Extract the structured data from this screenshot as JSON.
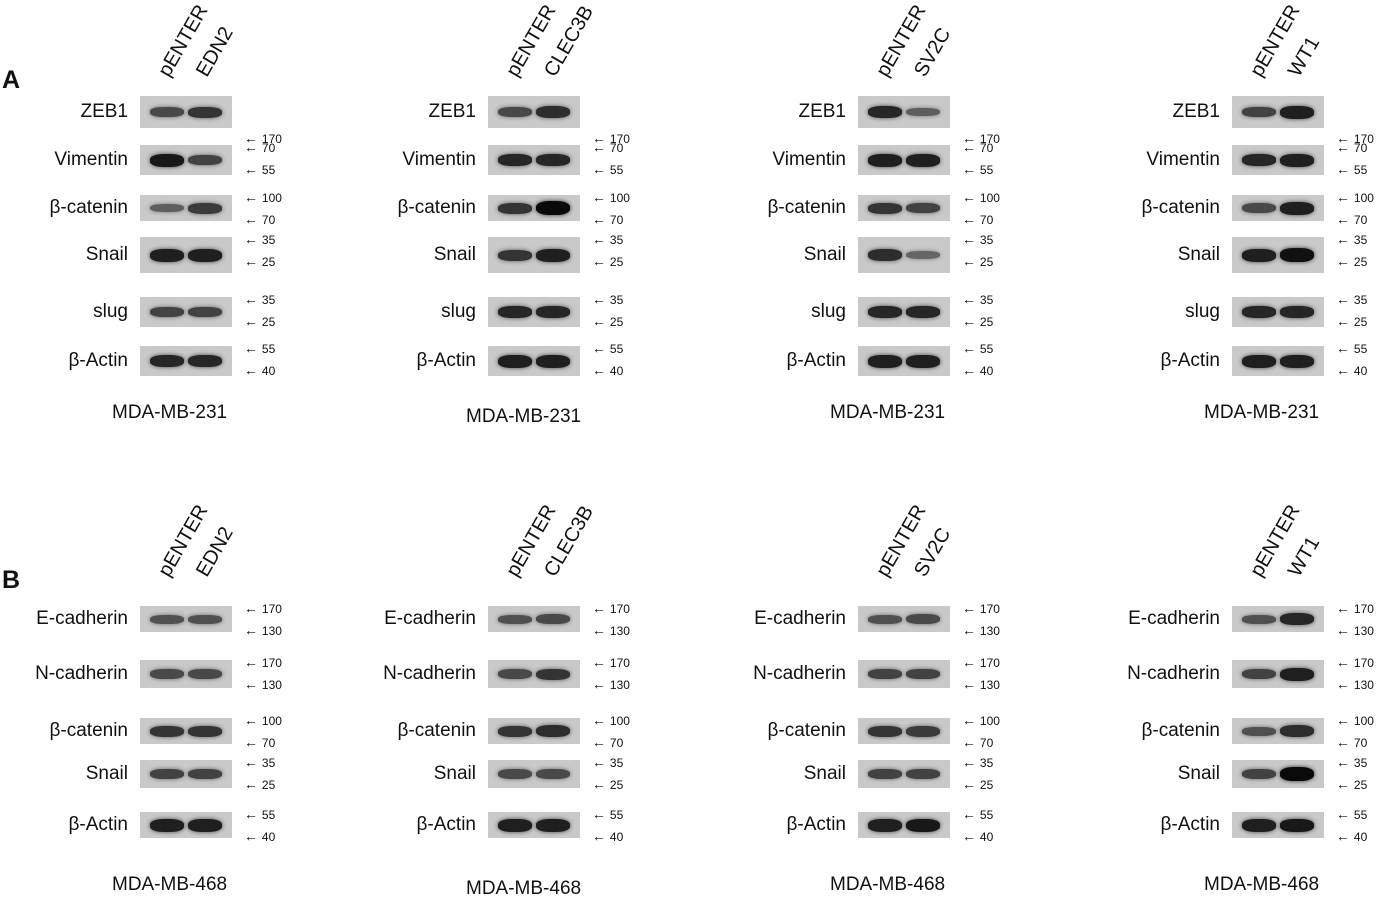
{
  "panels": [
    {
      "letter": "A",
      "cell_line": "MDA-MB-231",
      "blots": [
        {
          "lanes": [
            "pENTER",
            "EDN2"
          ],
          "rows": [
            {
              "protein": "ZEB1",
              "markers": [
                "170"
              ],
              "intensity": [
                0.55,
                0.7
              ]
            },
            {
              "protein": "Vimentin",
              "markers": [
                "70",
                "55"
              ],
              "intensity": [
                0.9,
                0.6
              ]
            },
            {
              "protein": "β-catenin",
              "markers": [
                "100",
                "70"
              ],
              "intensity": [
                0.4,
                0.65
              ]
            },
            {
              "protein": "Snail",
              "markers": [
                "35",
                "25"
              ],
              "intensity": [
                0.85,
                0.85
              ]
            },
            {
              "protein": "slug",
              "markers": [
                "35",
                "25"
              ],
              "intensity": [
                0.6,
                0.6
              ]
            },
            {
              "protein": "β-Actin",
              "markers": [
                "55",
                "40"
              ],
              "intensity": [
                0.8,
                0.8
              ]
            }
          ]
        },
        {
          "lanes": [
            "pENTER",
            "CLEC3B"
          ],
          "rows": [
            {
              "protein": "ZEB1",
              "markers": [
                "170"
              ],
              "intensity": [
                0.55,
                0.75
              ]
            },
            {
              "protein": "Vimentin",
              "markers": [
                "70",
                "55"
              ],
              "intensity": [
                0.8,
                0.8
              ]
            },
            {
              "protein": "β-catenin",
              "markers": [
                "100",
                "70"
              ],
              "intensity": [
                0.7,
                1.0
              ]
            },
            {
              "protein": "Snail",
              "markers": [
                "35",
                "25"
              ],
              "intensity": [
                0.7,
                0.85
              ]
            },
            {
              "protein": "slug",
              "markers": [
                "35",
                "25"
              ],
              "intensity": [
                0.8,
                0.8
              ]
            },
            {
              "protein": "β-Actin",
              "markers": [
                "55",
                "40"
              ],
              "intensity": [
                0.85,
                0.85
              ]
            }
          ]
        },
        {
          "lanes": [
            "pENTER",
            "SV2C"
          ],
          "rows": [
            {
              "protein": "ZEB1",
              "markers": [
                "170"
              ],
              "intensity": [
                0.8,
                0.4
              ]
            },
            {
              "protein": "Vimentin",
              "markers": [
                "70",
                "55"
              ],
              "intensity": [
                0.85,
                0.85
              ]
            },
            {
              "protein": "β-catenin",
              "markers": [
                "100",
                "70"
              ],
              "intensity": [
                0.7,
                0.6
              ]
            },
            {
              "protein": "Snail",
              "markers": [
                "35",
                "25"
              ],
              "intensity": [
                0.75,
                0.35
              ]
            },
            {
              "protein": "slug",
              "markers": [
                "35",
                "25"
              ],
              "intensity": [
                0.8,
                0.8
              ]
            },
            {
              "protein": "β-Actin",
              "markers": [
                "55",
                "40"
              ],
              "intensity": [
                0.85,
                0.85
              ]
            }
          ]
        },
        {
          "lanes": [
            "pENTER",
            "WT1"
          ],
          "rows": [
            {
              "protein": "ZEB1",
              "markers": [
                "170"
              ],
              "intensity": [
                0.6,
                0.85
              ]
            },
            {
              "protein": "Vimentin",
              "markers": [
                "70",
                "55"
              ],
              "intensity": [
                0.8,
                0.85
              ]
            },
            {
              "protein": "β-catenin",
              "markers": [
                "100",
                "70"
              ],
              "intensity": [
                0.55,
                0.85
              ]
            },
            {
              "protein": "Snail",
              "markers": [
                "35",
                "25"
              ],
              "intensity": [
                0.85,
                0.95
              ]
            },
            {
              "protein": "slug",
              "markers": [
                "35",
                "25"
              ],
              "intensity": [
                0.8,
                0.8
              ]
            },
            {
              "protein": "β-Actin",
              "markers": [
                "55",
                "40"
              ],
              "intensity": [
                0.85,
                0.85
              ]
            }
          ]
        }
      ]
    },
    {
      "letter": "B",
      "cell_line": "MDA-MB-468",
      "blots": [
        {
          "lanes": [
            "pENTER",
            "EDN2"
          ],
          "rows": [
            {
              "protein": "E-cadherin",
              "markers": [
                "170",
                "130"
              ],
              "intensity": [
                0.5,
                0.5
              ]
            },
            {
              "protein": "N-cadherin",
              "markers": [
                "170",
                "130"
              ],
              "intensity": [
                0.55,
                0.55
              ]
            },
            {
              "protein": "β-catenin",
              "markers": [
                "100",
                "70"
              ],
              "intensity": [
                0.7,
                0.7
              ]
            },
            {
              "protein": "Snail",
              "markers": [
                "35",
                "25"
              ],
              "intensity": [
                0.6,
                0.6
              ]
            },
            {
              "protein": "β-Actin",
              "markers": [
                "55",
                "40"
              ],
              "intensity": [
                0.85,
                0.85
              ]
            }
          ]
        },
        {
          "lanes": [
            "pENTER",
            "CLEC3B"
          ],
          "rows": [
            {
              "protein": "E-cadherin",
              "markers": [
                "170",
                "130"
              ],
              "intensity": [
                0.5,
                0.55
              ]
            },
            {
              "protein": "N-cadherin",
              "markers": [
                "170",
                "130"
              ],
              "intensity": [
                0.55,
                0.7
              ]
            },
            {
              "protein": "β-catenin",
              "markers": [
                "100",
                "70"
              ],
              "intensity": [
                0.7,
                0.75
              ]
            },
            {
              "protein": "Snail",
              "markers": [
                "35",
                "25"
              ],
              "intensity": [
                0.55,
                0.55
              ]
            },
            {
              "protein": "β-Actin",
              "markers": [
                "55",
                "40"
              ],
              "intensity": [
                0.85,
                0.85
              ]
            }
          ]
        },
        {
          "lanes": [
            "pENTER",
            "SV2C"
          ],
          "rows": [
            {
              "protein": "E-cadherin",
              "markers": [
                "170",
                "130"
              ],
              "intensity": [
                0.5,
                0.55
              ]
            },
            {
              "protein": "N-cadherin",
              "markers": [
                "170",
                "130"
              ],
              "intensity": [
                0.6,
                0.6
              ]
            },
            {
              "protein": "β-catenin",
              "markers": [
                "100",
                "70"
              ],
              "intensity": [
                0.7,
                0.65
              ]
            },
            {
              "protein": "Snail",
              "markers": [
                "35",
                "25"
              ],
              "intensity": [
                0.6,
                0.6
              ]
            },
            {
              "protein": "β-Actin",
              "markers": [
                "55",
                "40"
              ],
              "intensity": [
                0.85,
                0.9
              ]
            }
          ]
        },
        {
          "lanes": [
            "pENTER",
            "WT1"
          ],
          "rows": [
            {
              "protein": "E-cadherin",
              "markers": [
                "170",
                "130"
              ],
              "intensity": [
                0.5,
                0.8
              ]
            },
            {
              "protein": "N-cadherin",
              "markers": [
                "170",
                "130"
              ],
              "intensity": [
                0.6,
                0.85
              ]
            },
            {
              "protein": "β-catenin",
              "markers": [
                "100",
                "70"
              ],
              "intensity": [
                0.5,
                0.75
              ]
            },
            {
              "protein": "Snail",
              "markers": [
                "35",
                "25"
              ],
              "intensity": [
                0.6,
                1.0
              ]
            },
            {
              "protein": "β-Actin",
              "markers": [
                "55",
                "40"
              ],
              "intensity": [
                0.85,
                0.9
              ]
            }
          ]
        }
      ]
    }
  ]
}
